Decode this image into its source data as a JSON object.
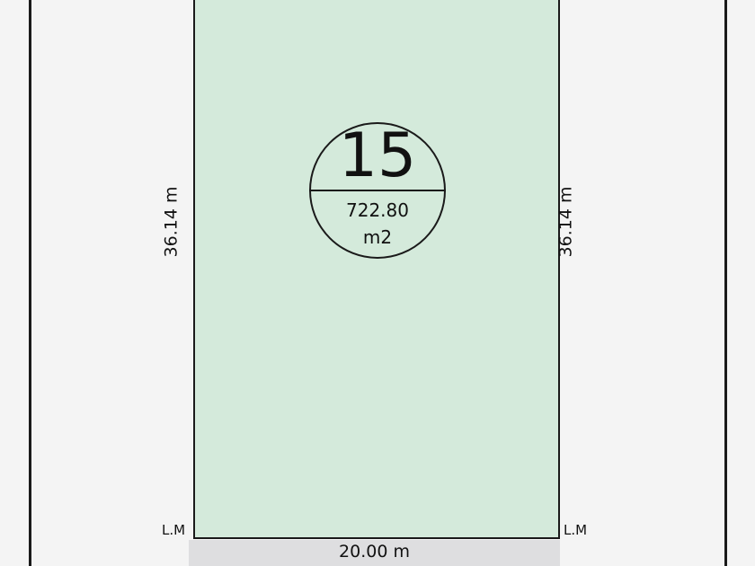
{
  "lot": {
    "number": "15",
    "area": "722.80",
    "area_unit": "m2",
    "fill_color": "#d4eadb"
  },
  "dimensions": {
    "left": "36.14 m",
    "right": "36.14 m",
    "front": "20.00 m"
  },
  "markers": {
    "left": "L.M",
    "right": "L.M"
  }
}
